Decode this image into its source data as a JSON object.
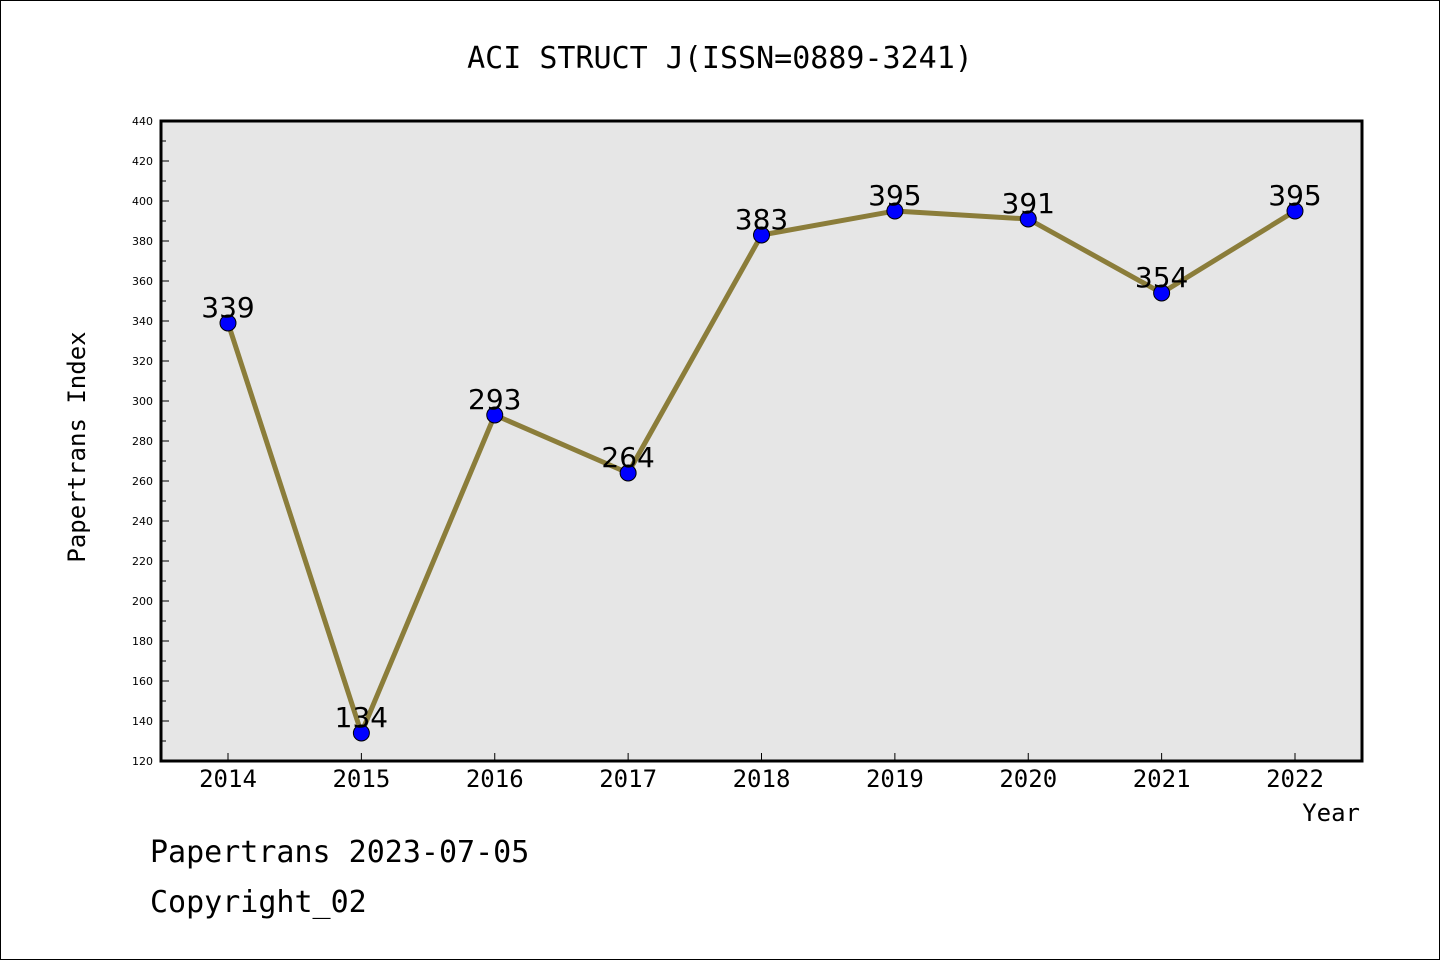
{
  "chart_data": {
    "type": "line",
    "title": "ACI STRUCT J(ISSN=0889-3241)",
    "xlabel": "Year",
    "ylabel": "Papertrans Index",
    "x": [
      "2014",
      "2015",
      "2016",
      "2017",
      "2018",
      "2019",
      "2020",
      "2021",
      "2022"
    ],
    "series": [
      {
        "values": [
          339,
          134,
          293,
          264,
          383,
          395,
          391,
          354,
          395
        ]
      }
    ],
    "data_labels": [
      "339",
      "134",
      "293",
      "264",
      "383",
      "395",
      "391",
      "354",
      "395"
    ],
    "ylim": [
      120,
      440
    ],
    "y_ticks": [
      "120",
      "140",
      "160",
      "180",
      "200",
      "220",
      "240",
      "260",
      "280",
      "300",
      "320",
      "340",
      "360",
      "380",
      "400",
      "420",
      "440"
    ],
    "grid": false,
    "legend": "none",
    "colors": {
      "plot_background": "#e6e6e6",
      "line": "#8b7d3a",
      "marker": "#0000ff",
      "axis": "#000000"
    }
  },
  "footer": {
    "line1": "Papertrans 2023-07-05",
    "line2": "Copyright_02"
  }
}
